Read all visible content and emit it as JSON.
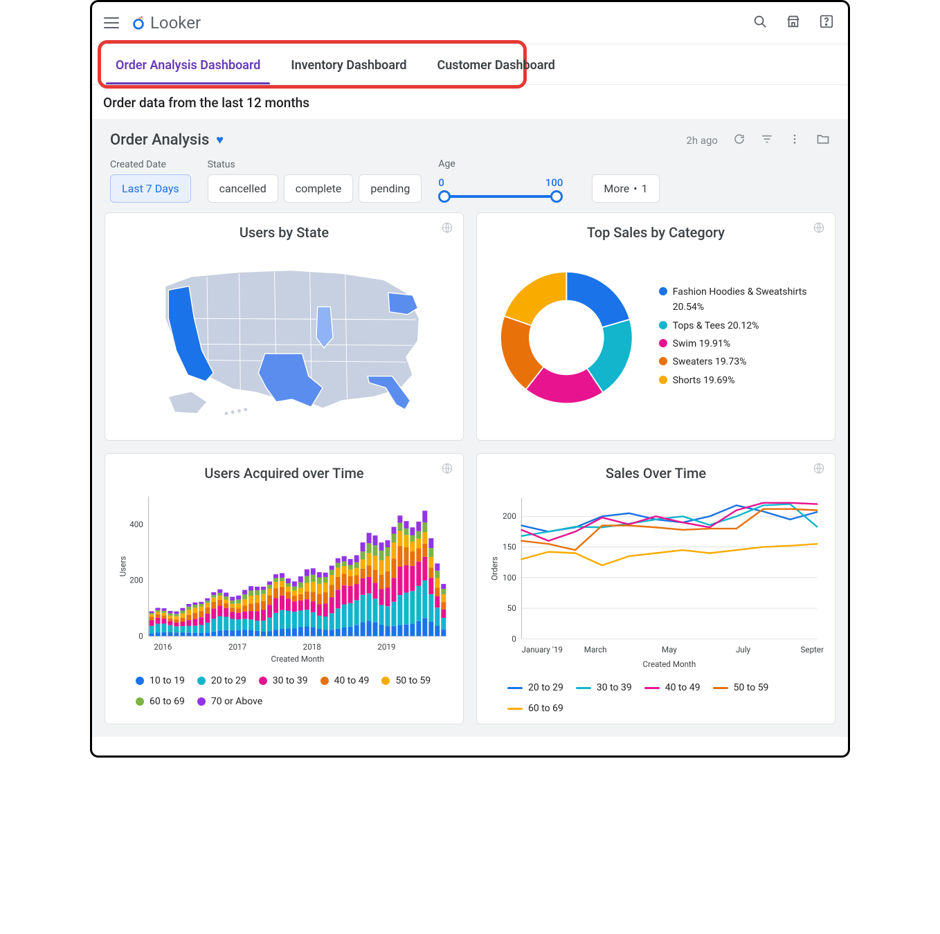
{
  "brand": {
    "name": "Looker",
    "ring_color": "#1a73e8",
    "accent_color": "#f29900"
  },
  "tabs": {
    "highlight_box_color": "#e53935",
    "items": [
      {
        "label": "Order Analysis Dashboard",
        "active": true
      },
      {
        "label": "Inventory Dashboard",
        "active": false
      },
      {
        "label": "Customer Dashboard",
        "active": false
      }
    ]
  },
  "subtitle": "Order data from the last 12 months",
  "dashboard": {
    "title": "Order Analysis",
    "favorited": true,
    "last_refresh": "2h ago"
  },
  "filters": {
    "created_date": {
      "label": "Created Date",
      "value": "Last 7 Days"
    },
    "status": {
      "label": "Status",
      "options": [
        "cancelled",
        "complete",
        "pending"
      ]
    },
    "age": {
      "label": "Age",
      "min": 0,
      "max": 100
    },
    "more": {
      "label": "More",
      "count": 1
    }
  },
  "palette": {
    "blue": "#1a73e8",
    "cyan": "#12b5cb",
    "magenta": "#e8138f",
    "orange": "#e8710a",
    "amber": "#f9ab00",
    "green": "#7cb342",
    "purple": "#9334e6",
    "grid": "#e0e0e0",
    "axis": "#bdbdbd",
    "text": "#3c4043"
  },
  "users_by_state": {
    "title": "Users by State",
    "type": "choropleth-usa",
    "base_fill": "#c7d0e0",
    "stroke": "#ffffff",
    "highlighted": [
      {
        "state": "CA",
        "color": "#1a73e8"
      },
      {
        "state": "TX",
        "color": "#5b8def"
      },
      {
        "state": "FL",
        "color": "#5b8def"
      },
      {
        "state": "NY",
        "color": "#5b8def"
      },
      {
        "state": "IL",
        "color": "#8fb3f4"
      }
    ]
  },
  "top_sales": {
    "title": "Top Sales by Category",
    "type": "donut",
    "inner_ratio": 0.56,
    "slices": [
      {
        "label": "Fashion Hoodies & Sweatshirts",
        "value": 20.54,
        "color": "#1a73e8"
      },
      {
        "label": "Tops & Tees",
        "value": 20.12,
        "color": "#12b5cb"
      },
      {
        "label": "Swim",
        "value": 19.91,
        "color": "#e8138f"
      },
      {
        "label": "Sweaters",
        "value": 19.73,
        "color": "#e8710a"
      },
      {
        "label": "Shorts",
        "value": 19.69,
        "color": "#f9ab00"
      }
    ]
  },
  "users_acquired": {
    "title": "Users Acquired over Time",
    "type": "stacked-bar",
    "y_label": "Users",
    "x_label": "Created Month",
    "x_year_ticks": [
      "2016",
      "2017",
      "2018",
      "2019"
    ],
    "y_ticks": [
      0,
      200,
      400
    ],
    "y_max": 500,
    "months": 48,
    "series": [
      {
        "name": "10 to 19",
        "color": "#1a73e8"
      },
      {
        "name": "20 to 29",
        "color": "#12b5cb"
      },
      {
        "name": "30 to 39",
        "color": "#e8138f"
      },
      {
        "name": "40 to 49",
        "color": "#e8710a"
      },
      {
        "name": "50 to 59",
        "color": "#f9ab00"
      },
      {
        "name": "60 to 69",
        "color": "#7cb342"
      },
      {
        "name": "70 or Above",
        "color": "#9334e6"
      }
    ],
    "shape": {
      "start_total": 80,
      "end_total": 360,
      "peak_total": 480,
      "peak_index": 40,
      "tail_drop": 0.55
    }
  },
  "sales_over_time": {
    "title": "Sales Over Time",
    "type": "line",
    "y_label": "Orders",
    "x_label": "Created Month",
    "x_ticks": [
      "January '19",
      "March",
      "May",
      "July",
      "Septem…"
    ],
    "y_ticks": [
      0,
      50,
      100,
      150,
      200
    ],
    "y_max": 230,
    "series": [
      {
        "name": "20 to 29",
        "color": "#1a73e8",
        "values": [
          185,
          175,
          182,
          200,
          205,
          195,
          190,
          200,
          218,
          208,
          195,
          207
        ]
      },
      {
        "name": "30 to 39",
        "color": "#12b5cb",
        "values": [
          168,
          175,
          183,
          182,
          188,
          195,
          200,
          186,
          200,
          218,
          220,
          183
        ]
      },
      {
        "name": "40 to 49",
        "color": "#e8138f",
        "values": [
          178,
          160,
          175,
          198,
          187,
          200,
          190,
          182,
          210,
          222,
          222,
          220
        ]
      },
      {
        "name": "50 to 59",
        "color": "#e8710a",
        "values": [
          160,
          155,
          145,
          185,
          185,
          182,
          178,
          180,
          180,
          212,
          212,
          210
        ]
      },
      {
        "name": "60 to 69",
        "color": "#f9ab00",
        "values": [
          130,
          142,
          140,
          120,
          135,
          140,
          145,
          140,
          145,
          150,
          152,
          155
        ]
      }
    ]
  }
}
